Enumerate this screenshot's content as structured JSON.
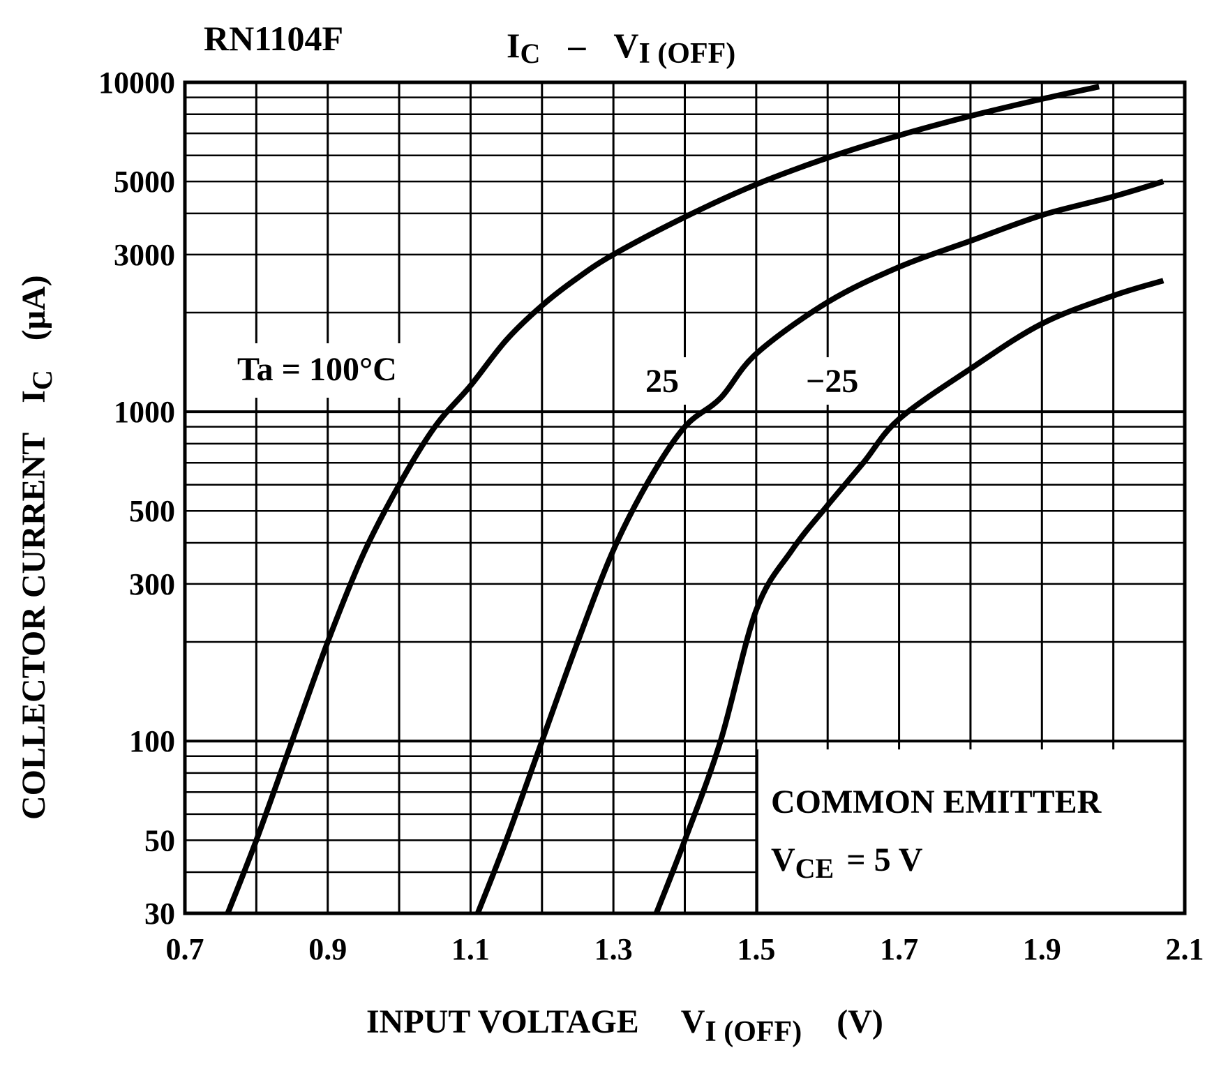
{
  "chart_data": {
    "type": "line",
    "title": {
      "part": "RN1104F",
      "y_symbol": "I",
      "y_sub": "C",
      "dash": "–",
      "x_symbol": "V",
      "x_sub": "I (OFF)"
    },
    "xlabel": {
      "text": "INPUT VOLTAGE",
      "symbol": "V",
      "sub": "I (OFF)",
      "unit": "(V)"
    },
    "ylabel": {
      "text": "COLLECTOR CURRENT",
      "symbol": "I",
      "sub": "C",
      "unit": "(μA)"
    },
    "xlim": [
      0.7,
      2.1
    ],
    "ylim": [
      30,
      10000
    ],
    "yscale": "log",
    "grid": true,
    "x_ticks": [
      "0.7",
      "0.9",
      "1.1",
      "1.3",
      "1.5",
      "1.7",
      "1.9",
      "2.1"
    ],
    "x_tick_values": [
      0.7,
      0.9,
      1.1,
      1.3,
      1.5,
      1.7,
      1.9,
      2.1
    ],
    "y_ticks": [
      "30",
      "50",
      "100",
      "300",
      "500",
      "1000",
      "3000",
      "5000",
      "10000"
    ],
    "y_tick_values": [
      30,
      50,
      100,
      300,
      500,
      1000,
      3000,
      5000,
      10000
    ],
    "series": [
      {
        "label": "Ta = 100°C",
        "x": [
          0.76,
          0.8,
          0.85,
          0.9,
          0.95,
          1.0,
          1.05,
          1.1,
          1.15,
          1.2,
          1.25,
          1.3,
          1.4,
          1.5,
          1.6,
          1.7,
          1.8,
          1.9,
          1.98
        ],
        "values": [
          30,
          50,
          100,
          200,
          370,
          600,
          900,
          1200,
          1650,
          2100,
          2550,
          3000,
          3900,
          4900,
          5900,
          6900,
          7900,
          8900,
          9700
        ]
      },
      {
        "label": "25",
        "x": [
          1.11,
          1.15,
          1.2,
          1.25,
          1.3,
          1.35,
          1.4,
          1.45,
          1.5,
          1.6,
          1.7,
          1.8,
          1.9,
          2.0,
          2.07
        ],
        "values": [
          30,
          50,
          100,
          200,
          380,
          620,
          900,
          1100,
          1500,
          2150,
          2750,
          3300,
          3950,
          4500,
          5000
        ]
      },
      {
        "label": "−25",
        "x": [
          1.36,
          1.4,
          1.45,
          1.5,
          1.55,
          1.6,
          1.65,
          1.7,
          1.8,
          1.9,
          2.0,
          2.07
        ],
        "values": [
          30,
          50,
          100,
          250,
          380,
          520,
          700,
          950,
          1350,
          1850,
          2250,
          2500
        ]
      }
    ],
    "annotation": {
      "line1": "COMMON EMITTER",
      "line2_symbol": "V",
      "line2_sub": "CE",
      "line2_rest": "= 5 V"
    }
  }
}
